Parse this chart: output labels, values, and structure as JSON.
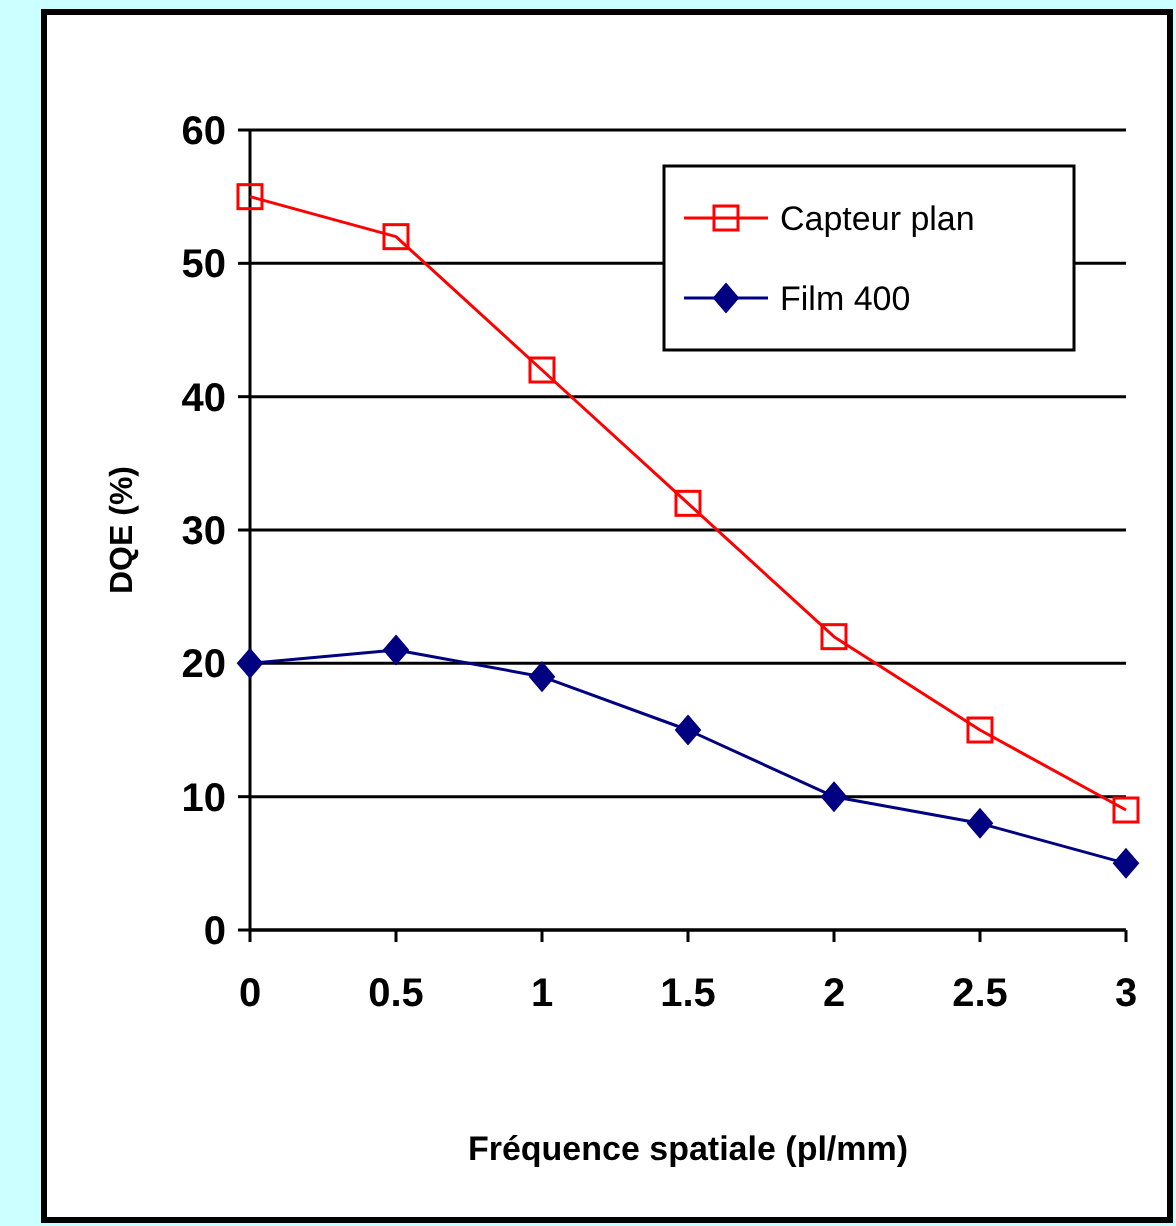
{
  "chart_data": {
    "type": "line",
    "xlabel": "Fréquence spatiale (pl/mm)",
    "ylabel": "DQE (%)",
    "x": [
      0,
      0.5,
      1,
      1.5,
      2,
      2.5,
      3
    ],
    "xlim": [
      0,
      3
    ],
    "xticks": [
      0,
      0.5,
      1,
      1.5,
      2,
      2.5,
      3
    ],
    "ylim": [
      0,
      60
    ],
    "yticks": [
      0,
      10,
      20,
      30,
      40,
      50,
      60
    ],
    "grid": "y",
    "legend": "top right",
    "series": [
      {
        "name": "Capteur plan",
        "color": "#ff0000",
        "marker": "square",
        "values": [
          55,
          52,
          42,
          32,
          22,
          15,
          9
        ]
      },
      {
        "name": "Film 400",
        "color": "#000080",
        "marker": "diamond",
        "values": [
          20,
          21,
          19,
          15,
          10,
          8,
          5
        ]
      }
    ]
  }
}
